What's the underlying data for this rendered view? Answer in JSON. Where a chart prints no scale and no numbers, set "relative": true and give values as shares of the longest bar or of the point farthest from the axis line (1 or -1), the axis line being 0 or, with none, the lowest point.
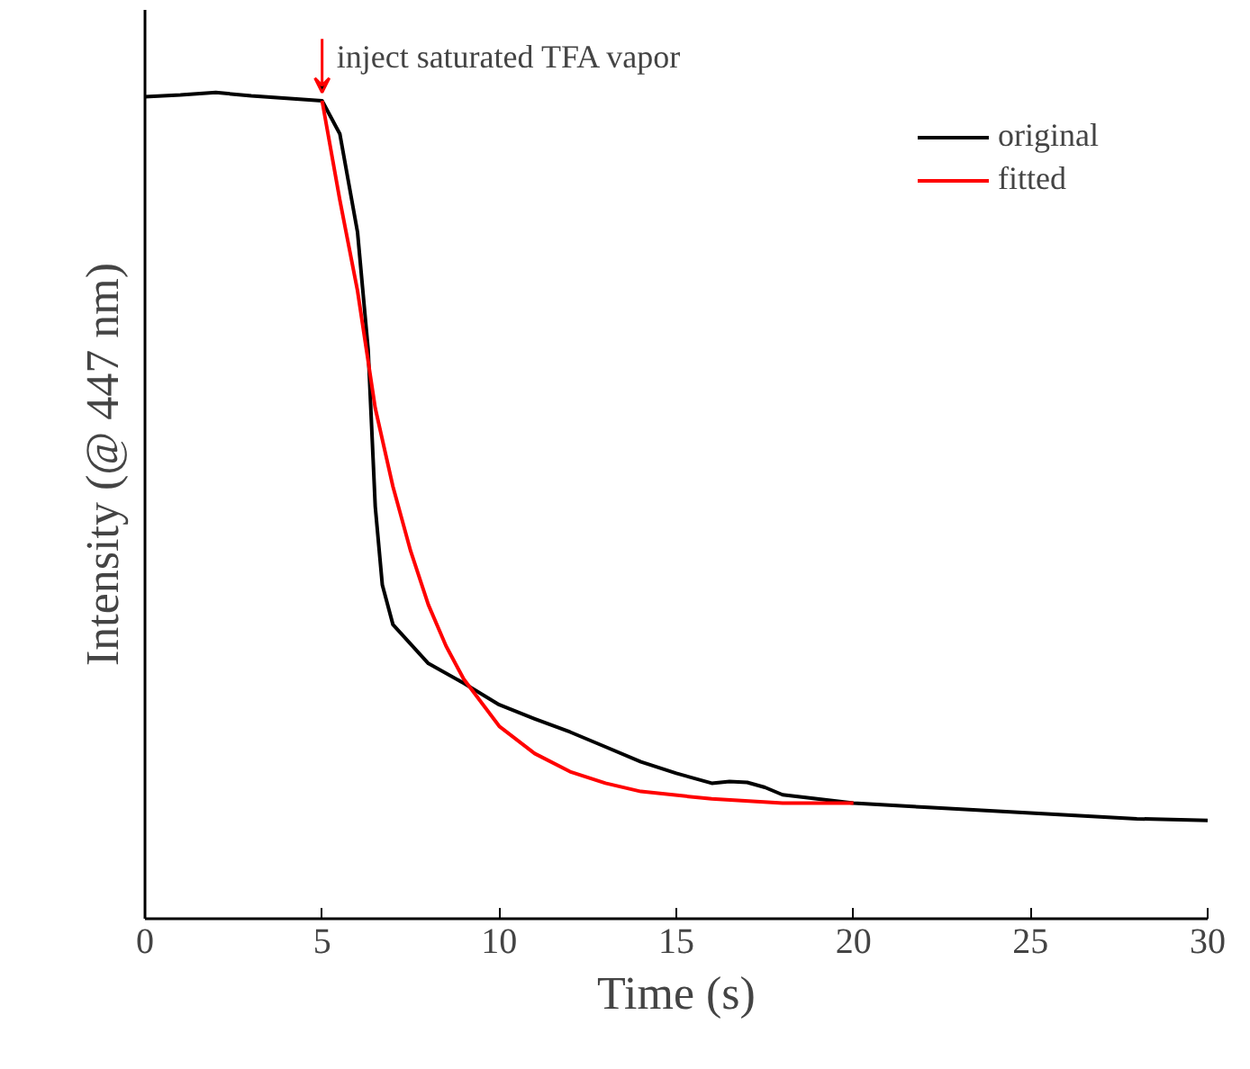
{
  "chart_data": {
    "type": "line",
    "relative": true,
    "xlabel": "Time (s)",
    "ylabel": "Intensity (@ 447 nm)",
    "xlim": [
      0,
      30
    ],
    "xticks": [
      0,
      5,
      10,
      15,
      20,
      25,
      30
    ],
    "legend": "top right",
    "grid": false,
    "annotations": [
      {
        "text": "inject saturated TFA vapor",
        "x": 5,
        "y": 0.99
      }
    ],
    "series": [
      {
        "name": "original",
        "color": "#000000",
        "x": [
          0,
          1,
          2,
          3,
          4,
          5,
          5.5,
          6,
          6.3,
          6.5,
          6.7,
          7,
          8,
          9,
          10,
          11,
          12,
          13,
          14,
          15,
          16,
          16.5,
          17,
          17.5,
          18,
          20,
          22,
          25,
          28,
          30
        ],
        "values": [
          0.995,
          0.997,
          1.0,
          0.996,
          0.993,
          0.99,
          0.95,
          0.831,
          0.689,
          0.499,
          0.404,
          0.356,
          0.309,
          0.285,
          0.259,
          0.242,
          0.226,
          0.208,
          0.19,
          0.176,
          0.164,
          0.166,
          0.165,
          0.159,
          0.15,
          0.14,
          0.135,
          0.128,
          0.121,
          0.119
        ]
      },
      {
        "name": "fitted",
        "color": "#ff0000",
        "x": [
          5,
          5.5,
          6,
          6.5,
          7,
          7.5,
          8,
          8.5,
          9,
          10,
          11,
          12,
          13,
          14,
          16,
          18,
          20
        ],
        "values": [
          0.99,
          0.87,
          0.76,
          0.618,
          0.523,
          0.445,
          0.38,
          0.33,
          0.29,
          0.233,
          0.2,
          0.178,
          0.164,
          0.154,
          0.145,
          0.14,
          0.14
        ]
      }
    ]
  }
}
